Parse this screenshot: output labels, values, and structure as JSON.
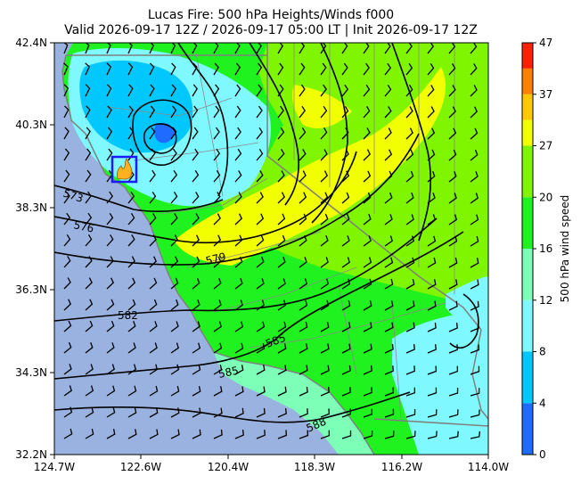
{
  "title": {
    "line1": "Lucas Fire: 500 hPa Heights/Winds f000",
    "line2": "Valid 2026-09-17 12Z / 2026-09-17 05:00 LT | Init 2026-09-17 12Z"
  },
  "colorbar": {
    "label": "500 hPa wind speed",
    "ticks": [
      "0",
      "4",
      "8",
      "12",
      "16",
      "20",
      "27",
      "37",
      "47"
    ],
    "bands": [
      {
        "from": 0,
        "to": 4,
        "color": "#1f6bff"
      },
      {
        "from": 4,
        "to": 8,
        "color": "#00c8ff"
      },
      {
        "from": 8,
        "to": 12,
        "color": "#7ff9ff"
      },
      {
        "from": 12,
        "to": 16,
        "color": "#7dffb8"
      },
      {
        "from": 16,
        "to": 20,
        "color": "#1ff21f"
      },
      {
        "from": 20,
        "to": 27,
        "color": "#7ff500"
      },
      {
        "from": 27,
        "to": 32,
        "color": "#f2ff00"
      },
      {
        "from": 32,
        "to": 37,
        "color": "#ffc800"
      },
      {
        "from": 37,
        "to": 42,
        "color": "#ff7f00"
      },
      {
        "from": 42,
        "to": 47,
        "color": "#ff2000"
      }
    ]
  },
  "axes": {
    "lat_ticks": [
      "42.4N",
      "40.3N",
      "38.3N",
      "36.3N",
      "34.3N",
      "32.2N"
    ],
    "lon_ticks": [
      "124.7W",
      "122.6W",
      "120.4W",
      "118.3W",
      "116.2W",
      "114.0W"
    ]
  },
  "contours": [
    {
      "label": "573"
    },
    {
      "label": "576"
    },
    {
      "label": "579"
    },
    {
      "label": "582"
    },
    {
      "label": "585"
    },
    {
      "label": "585"
    },
    {
      "label": "588"
    }
  ],
  "fire_marker": {
    "lat": 39.05,
    "lon": -122.9
  },
  "colors": {
    "ocean": "#9ab2df",
    "state_lines": "#808080",
    "marker": "#1a1aff",
    "fire": "#ffb020"
  }
}
